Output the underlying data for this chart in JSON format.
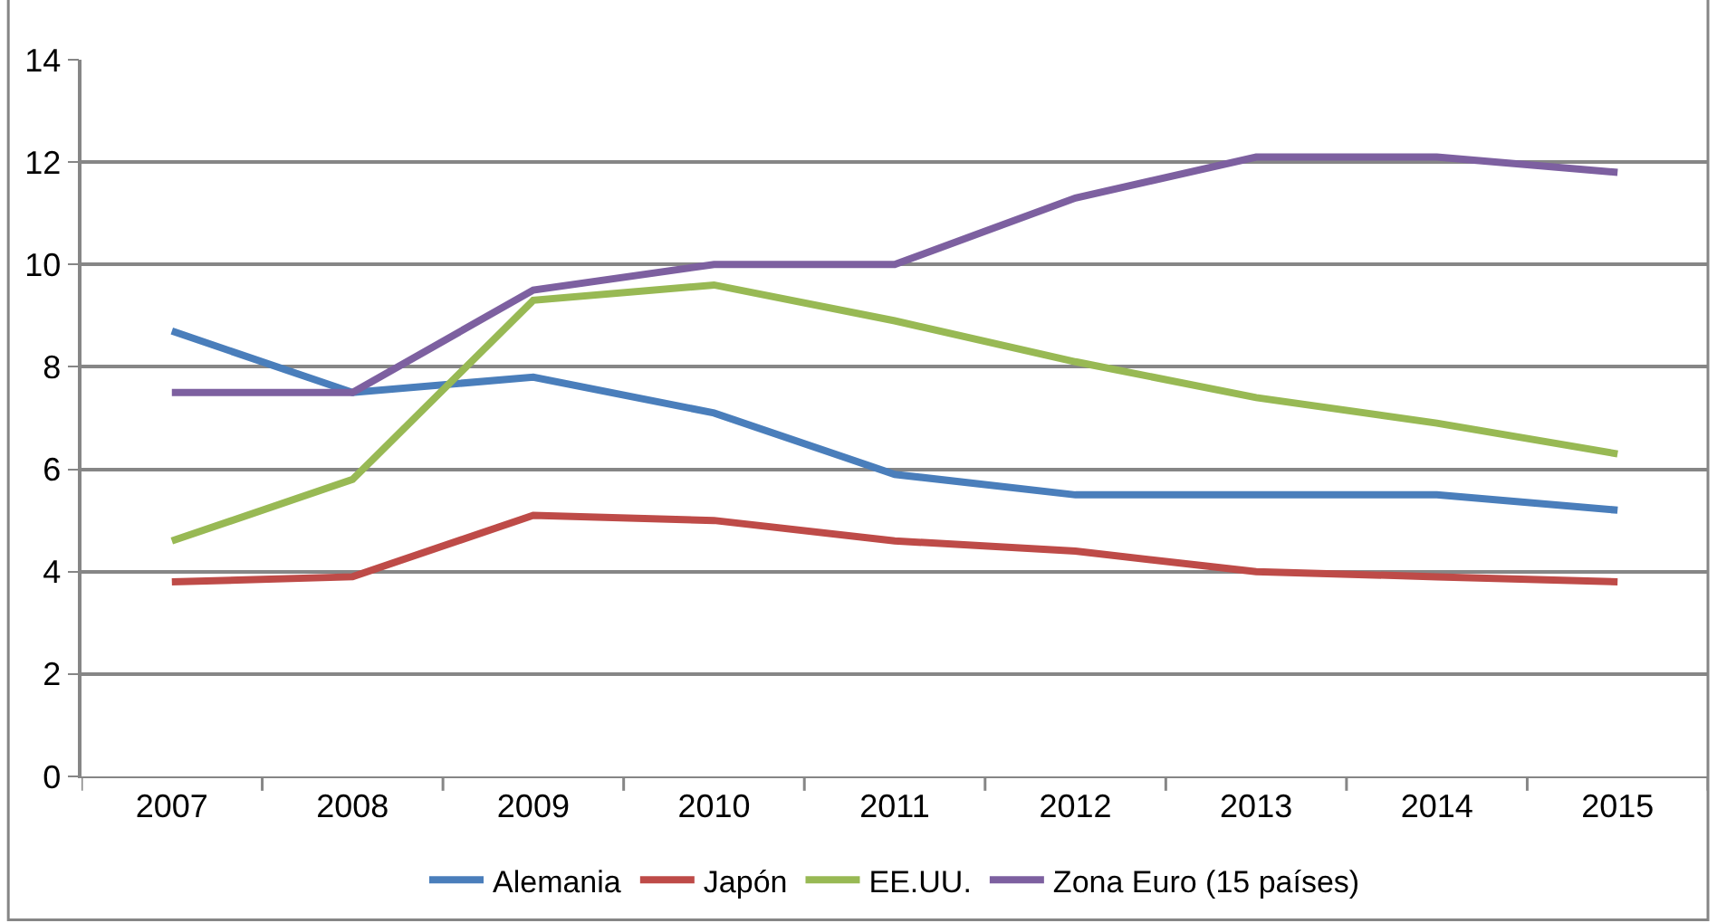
{
  "chart_data": {
    "type": "line",
    "categories": [
      "2007",
      "2008",
      "2009",
      "2010",
      "2011",
      "2012",
      "2013",
      "2014",
      "2015"
    ],
    "series": [
      {
        "name": "Alemania",
        "color": "#4a7ebb",
        "values": [
          8.7,
          7.5,
          7.8,
          7.1,
          5.9,
          5.5,
          5.5,
          5.5,
          5.2
        ]
      },
      {
        "name": "Japón",
        "color": "#be4b48",
        "values": [
          3.8,
          3.9,
          5.1,
          5.0,
          4.6,
          4.4,
          4.0,
          3.9,
          3.8
        ]
      },
      {
        "name": "EE.UU.",
        "color": "#98b954",
        "values": [
          4.6,
          5.8,
          9.3,
          9.6,
          8.9,
          8.1,
          7.4,
          6.9,
          6.3
        ]
      },
      {
        "name": "Zona Euro (15 países)",
        "color": "#7d60a0",
        "values": [
          7.5,
          7.5,
          9.5,
          10.0,
          10.0,
          11.3,
          12.1,
          12.1,
          11.8
        ]
      }
    ],
    "ylim": [
      0,
      14
    ],
    "yticks": [
      0,
      2,
      4,
      6,
      8,
      10,
      12,
      14
    ],
    "grid": "y",
    "legend": "bottom",
    "marker": "none",
    "line_style": "solid"
  }
}
